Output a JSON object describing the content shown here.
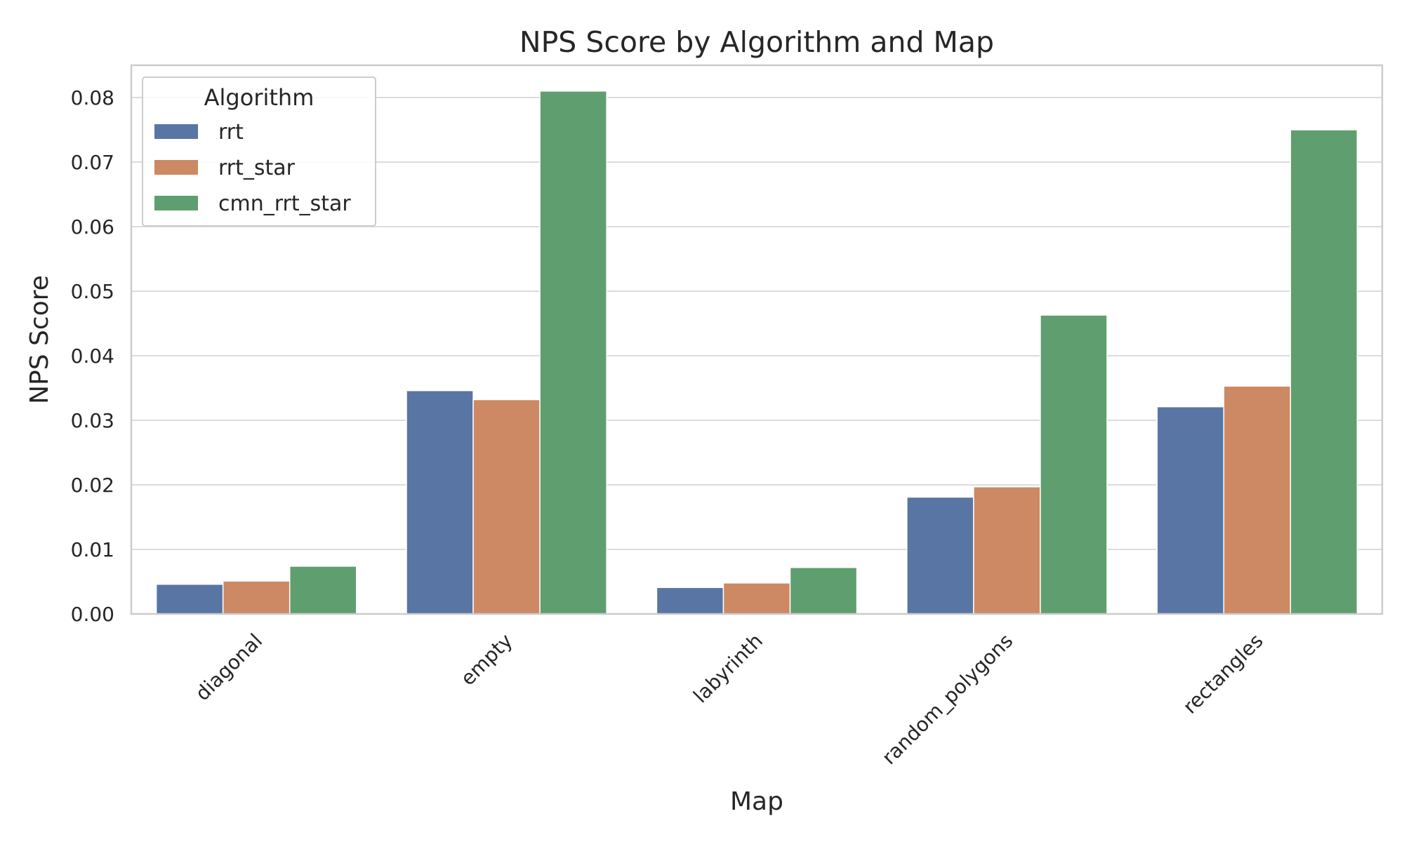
{
  "chart_data": {
    "type": "bar",
    "title": "NPS Score by Algorithm and Map",
    "xlabel": "Map",
    "ylabel": "NPS Score",
    "categories": [
      "diagonal",
      "empty",
      "labyrinth",
      "random_polygons",
      "rectangles"
    ],
    "series": [
      {
        "name": "rrt",
        "color": "#5875a4",
        "values": [
          0.0046,
          0.0346,
          0.0041,
          0.0181,
          0.0321
        ]
      },
      {
        "name": "rrt_star",
        "color": "#cc8963",
        "values": [
          0.0051,
          0.0332,
          0.0048,
          0.0197,
          0.0353
        ]
      },
      {
        "name": "cmn_rrt_star",
        "color": "#5f9e6e",
        "values": [
          0.0074,
          0.081,
          0.0072,
          0.0463,
          0.075
        ]
      }
    ],
    "ylim": [
      0,
      0.085
    ],
    "yticks": [
      "0.00",
      "0.01",
      "0.02",
      "0.03",
      "0.04",
      "0.05",
      "0.06",
      "0.07",
      "0.08"
    ],
    "grid": true,
    "legend": {
      "title": "Algorithm",
      "placement": "top-left"
    }
  }
}
